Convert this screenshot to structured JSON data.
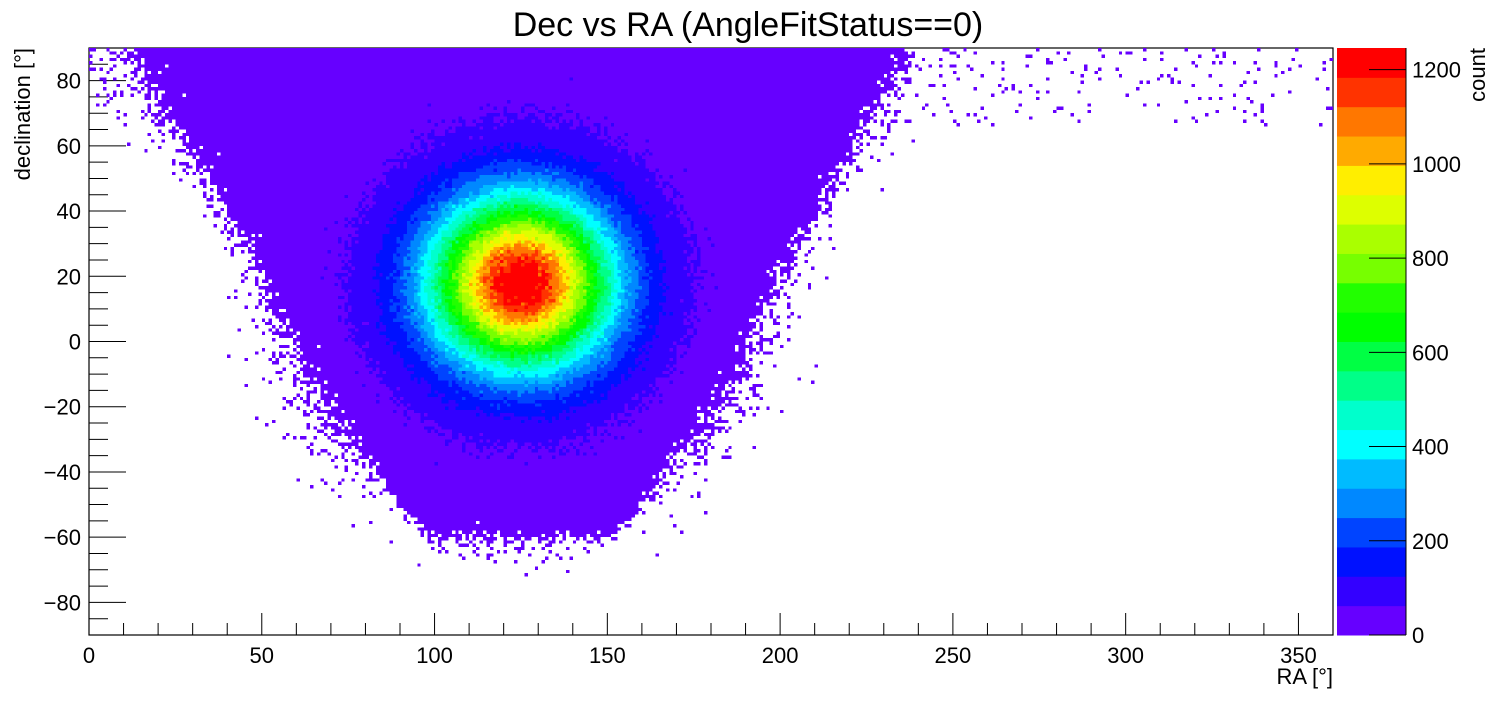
{
  "chart_data": {
    "type": "heatmap",
    "title": "Dec vs RA (AngleFitStatus==0)",
    "xlabel": "RA [°]",
    "ylabel": "declination [°]",
    "zlabel": "count",
    "xlim": [
      0,
      360
    ],
    "ylim": [
      -90,
      90
    ],
    "zlim": [
      0,
      1246
    ],
    "bins_x": 360,
    "bins_y": 180,
    "xticks": [
      0,
      50,
      100,
      150,
      200,
      250,
      300,
      350
    ],
    "xtick_labels": [
      "0",
      "50",
      "100",
      "150",
      "200",
      "250",
      "300",
      "350"
    ],
    "yticks": [
      -80,
      -60,
      -40,
      -20,
      0,
      20,
      40,
      60,
      80
    ],
    "ytick_labels": [
      "−80",
      "−60",
      "−40",
      "−20",
      "0",
      "20",
      "40",
      "60",
      "80"
    ],
    "zticks": [
      0,
      200,
      400,
      600,
      800,
      1000,
      1200
    ],
    "ztick_labels": [
      "0",
      "200",
      "400",
      "600",
      "800",
      "1000",
      "1200"
    ],
    "palette": [
      "#6600ff",
      "#3300ff",
      "#0011ff",
      "#0044ff",
      "#0088ff",
      "#00bbff",
      "#00ffff",
      "#00ffcc",
      "#00ff88",
      "#00ff44",
      "#00ff00",
      "#22ff00",
      "#77ff00",
      "#aaff00",
      "#ddff00",
      "#ffee00",
      "#ffaa00",
      "#ff7700",
      "#ff3300",
      "#ff0000"
    ],
    "distribution": {
      "peak": {
        "ra": 125,
        "dec": 18,
        "count": 1230,
        "sigma_deg": 18
      },
      "plateau": {
        "count": 40,
        "center_ra": 125,
        "lower_dec_edge": -52
      },
      "north_tail": {
        "ra_range": [
          0,
          360
        ],
        "dec_min": 65
      }
    }
  }
}
